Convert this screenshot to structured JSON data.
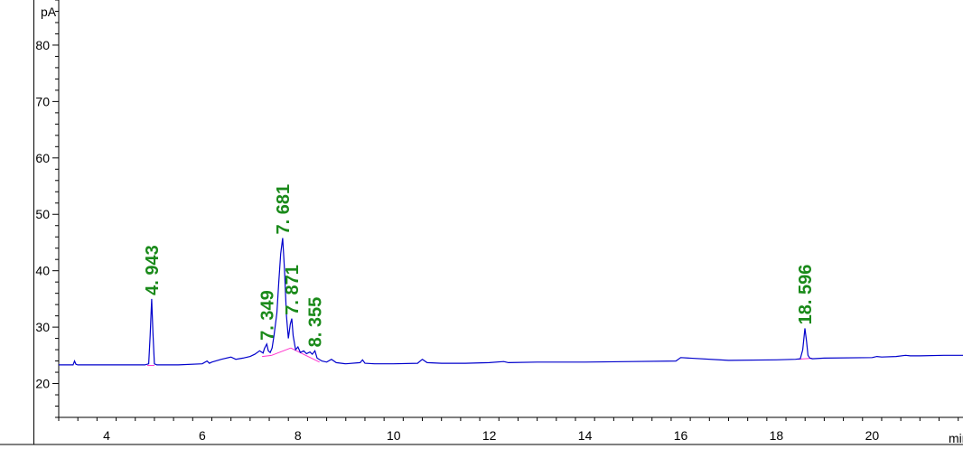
{
  "chart_data": {
    "type": "line",
    "title": "",
    "xlabel": "min",
    "ylabel": "pA",
    "xlim": [
      3.0,
      21.9
    ],
    "ylim": [
      14.0,
      88.0
    ],
    "x_ticks": [
      {
        "value": 4,
        "label": "4"
      },
      {
        "value": 6,
        "label": "6"
      },
      {
        "value": 8,
        "label": "8"
      },
      {
        "value": 10,
        "label": "10"
      },
      {
        "value": 12,
        "label": "12"
      },
      {
        "value": 14,
        "label": "14"
      },
      {
        "value": 16,
        "label": "16"
      },
      {
        "value": 18,
        "label": "18"
      },
      {
        "value": 20,
        "label": "20"
      }
    ],
    "y_ticks": [
      {
        "value": 20,
        "label": "20"
      },
      {
        "value": 30,
        "label": "30"
      },
      {
        "value": 40,
        "label": "40"
      },
      {
        "value": 50,
        "label": "50"
      },
      {
        "value": 60,
        "label": "60"
      },
      {
        "value": 70,
        "label": "70"
      },
      {
        "value": 80,
        "label": "80"
      }
    ],
    "grid": false,
    "trace_color": "#0000cc",
    "baseline_color": "#ff33cc",
    "label_color": "#1a8a1a",
    "trace": {
      "x": [
        3.0,
        3.3,
        3.33,
        3.36,
        3.4,
        4.0,
        4.8,
        4.88,
        4.91,
        4.943,
        4.97,
        5.0,
        5.05,
        5.5,
        6.0,
        6.1,
        6.15,
        6.2,
        6.4,
        6.6,
        6.7,
        6.85,
        7.0,
        7.1,
        7.2,
        7.27,
        7.3,
        7.349,
        7.38,
        7.42,
        7.46,
        7.5,
        7.56,
        7.6,
        7.64,
        7.681,
        7.72,
        7.76,
        7.8,
        7.84,
        7.871,
        7.9,
        7.95,
        8.0,
        8.05,
        8.12,
        8.18,
        8.25,
        8.3,
        8.355,
        8.4,
        8.5,
        8.6,
        8.7,
        8.8,
        9.0,
        9.3,
        9.35,
        9.4,
        9.6,
        10.0,
        10.5,
        10.6,
        10.7,
        11.0,
        11.5,
        12.0,
        12.3,
        12.4,
        13.0,
        14.0,
        15.0,
        15.9,
        16.0,
        17.0,
        18.0,
        18.4,
        18.5,
        18.55,
        18.596,
        18.63,
        18.66,
        18.7,
        18.75,
        19.0,
        20.0,
        20.1,
        20.2,
        20.5,
        20.7,
        20.8,
        21.0,
        21.5,
        21.9
      ],
      "y": [
        23.3,
        23.3,
        24.0,
        23.4,
        23.3,
        23.3,
        23.3,
        23.5,
        28.5,
        35.0,
        29.0,
        23.5,
        23.3,
        23.3,
        23.5,
        24.0,
        23.6,
        23.8,
        24.3,
        24.7,
        24.3,
        24.5,
        24.8,
        25.2,
        25.8,
        25.4,
        26.2,
        27.0,
        25.8,
        25.5,
        26.3,
        28.5,
        32.5,
        38.0,
        43.0,
        45.8,
        40.0,
        32.0,
        28.0,
        30.5,
        31.5,
        28.5,
        26.0,
        26.5,
        25.5,
        25.8,
        25.3,
        25.6,
        25.2,
        25.8,
        24.5,
        24.0,
        23.8,
        24.3,
        23.7,
        23.5,
        23.7,
        24.2,
        23.6,
        23.5,
        23.5,
        23.6,
        24.3,
        23.7,
        23.6,
        23.6,
        23.7,
        23.9,
        23.7,
        23.8,
        23.8,
        23.9,
        24.0,
        24.6,
        24.1,
        24.2,
        24.3,
        24.4,
        26.0,
        29.8,
        27.5,
        25.0,
        24.5,
        24.4,
        24.5,
        24.6,
        24.8,
        24.7,
        24.8,
        25.0,
        24.9,
        24.9,
        25.0,
        25.0
      ]
    },
    "peaks": [
      {
        "rt": 4.943,
        "label": "4. 943"
      },
      {
        "rt": 7.349,
        "label": "7. 349"
      },
      {
        "rt": 7.681,
        "label": "7. 681"
      },
      {
        "rt": 7.871,
        "label": "7. 871"
      },
      {
        "rt": 8.355,
        "label": "8. 355"
      },
      {
        "rt": 18.596,
        "label": "18. 596"
      }
    ],
    "integration_baselines": [
      {
        "x": [
          4.85,
          5.0
        ],
        "y": [
          23.2,
          23.2
        ]
      },
      {
        "x": [
          7.25,
          7.45
        ],
        "y": [
          24.8,
          25.0
        ]
      },
      {
        "x": [
          7.45,
          7.85
        ],
        "y": [
          25.0,
          26.3
        ]
      },
      {
        "x": [
          7.85,
          8.45
        ],
        "y": [
          26.3,
          23.8
        ]
      },
      {
        "x": [
          18.45,
          18.75
        ],
        "y": [
          24.3,
          24.5
        ]
      }
    ]
  }
}
